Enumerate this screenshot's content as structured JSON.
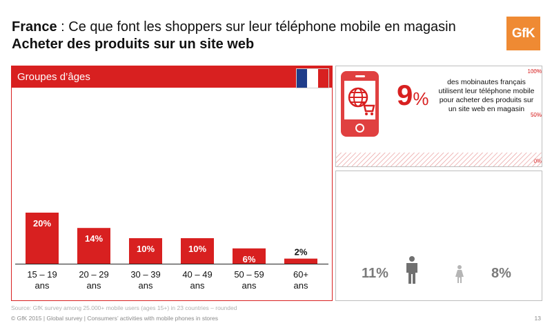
{
  "header": {
    "country": "France",
    "subtitle_rest": " : Ce que font les shoppers sur leur téléphone mobile en magasin",
    "title": "Acheter des produits sur un site web",
    "logo": "GfK"
  },
  "colors": {
    "accent": "#d82020",
    "logo_bg": "#ef8a33",
    "grey_text": "#7a7a7a"
  },
  "age_panel": {
    "label": "Groupes d’âges",
    "flag_icon": "france-flag-icon"
  },
  "chart_data": {
    "type": "bar",
    "categories": [
      "15 – 19 ans",
      "20 – 29 ans",
      "30 – 39 ans",
      "40 – 49 ans",
      "50 – 59 ans",
      "60+ ans"
    ],
    "category_lines": [
      [
        "15 – 19",
        "ans"
      ],
      [
        "20 – 29",
        "ans"
      ],
      [
        "30 – 39",
        "ans"
      ],
      [
        "40 – 49",
        "ans"
      ],
      [
        "50 – 59",
        "ans"
      ],
      [
        "60+",
        "ans"
      ]
    ],
    "values": [
      20,
      14,
      10,
      10,
      6,
      2
    ],
    "value_labels": [
      "20%",
      "14%",
      "10%",
      "10%",
      "6%",
      "2%"
    ],
    "title": "Groupes d’âges",
    "ylim": [
      0,
      100
    ],
    "grid": false
  },
  "stat": {
    "value": "9",
    "unit": "%",
    "description": "des mobinautes français utilisent leur téléphone mobile pour acheter des produits sur un site web en magasin",
    "scale_labels": [
      "100%",
      "50%",
      "0%"
    ],
    "icon": "phone-globe-cart-icon"
  },
  "gender": {
    "male_pct": "11%",
    "female_pct": "8%",
    "male_icon": "male-person-icon",
    "female_icon": "female-person-icon"
  },
  "footer": {
    "source": "Source: GfK survey among 25.000+ mobile users (ages 15+) in 23 countries – rounded",
    "copyright": "© GfK 2015 | Global survey | Consumers’ activities with mobile phones in stores",
    "page_number": "13"
  }
}
